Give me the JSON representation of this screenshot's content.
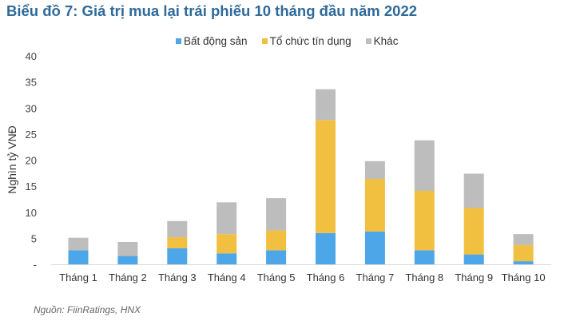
{
  "chart_data": {
    "type": "bar",
    "stacked": true,
    "title": "Biểu đồ 7: Giá trị mua lại trái phiếu 10 tháng đầu năm 2022",
    "xlabel": "",
    "ylabel": "Nghìn tỷ VNĐ",
    "ylim": [
      0,
      40
    ],
    "yticks": [
      "-",
      "5",
      "10",
      "15",
      "20",
      "25",
      "30",
      "35",
      "40"
    ],
    "grid": false,
    "legend_position": "top",
    "categories": [
      "Tháng 1",
      "Tháng 2",
      "Tháng 3",
      "Tháng 4",
      "Tháng 5",
      "Tháng 6",
      "Tháng 7",
      "Tháng 8",
      "Tháng 9",
      "Tháng 10"
    ],
    "series": [
      {
        "name": "Bất động sản",
        "color": "#4DA6E8",
        "values": [
          2.7,
          1.6,
          3.1,
          2.1,
          2.7,
          6.0,
          6.3,
          2.7,
          1.9,
          0.6
        ]
      },
      {
        "name": "Tổ chức tín dụng",
        "color": "#F2C040",
        "values": [
          0,
          0,
          2.1,
          3.7,
          3.8,
          21.7,
          10.1,
          11.4,
          8.9,
          3.1
        ]
      },
      {
        "name": "Khác",
        "color": "#BDBDBD",
        "values": [
          2.4,
          2.7,
          3.1,
          6.1,
          6.2,
          5.9,
          3.4,
          9.7,
          6.6,
          2.1
        ]
      }
    ],
    "source": "Nguồn: FiinRatings, HNX"
  }
}
